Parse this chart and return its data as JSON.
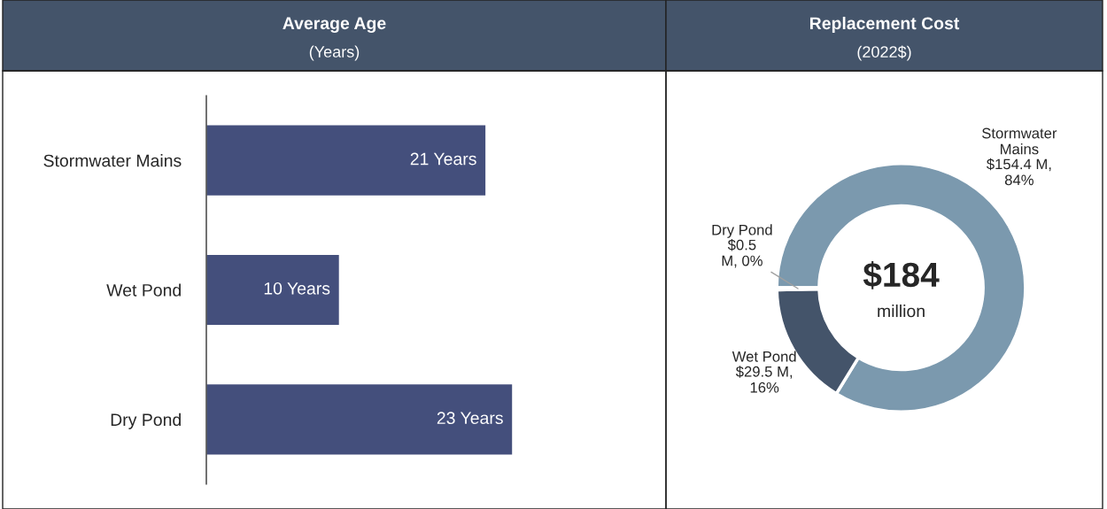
{
  "chart_data": [
    {
      "type": "bar",
      "orientation": "horizontal",
      "title": "Average Age",
      "subtitle": "(Years)",
      "categories": [
        "Stormwater Mains",
        "Wet Pond",
        "Dry Pond"
      ],
      "values": [
        21,
        10,
        23
      ],
      "color": "#444f7c",
      "value_labels": [
        "21 Years",
        "10 Years",
        "23 Years"
      ]
    },
    {
      "type": "donut",
      "title": "Replacement Cost",
      "subtitle": "(2022$)",
      "categories": [
        "Stormwater Mains",
        "Wet Pond",
        "Dry Pond"
      ],
      "values": [
        154.4,
        29.5,
        0.5
      ],
      "colors": [
        "#7b99ae",
        "#44546a",
        "#d9d9d9"
      ],
      "value_labels": [
        "$154.4 M, 84%",
        "$29.5 M, 16%",
        "$0.5 M, 0%"
      ],
      "annotations": [
        "$184",
        "million"
      ]
    }
  ]
}
